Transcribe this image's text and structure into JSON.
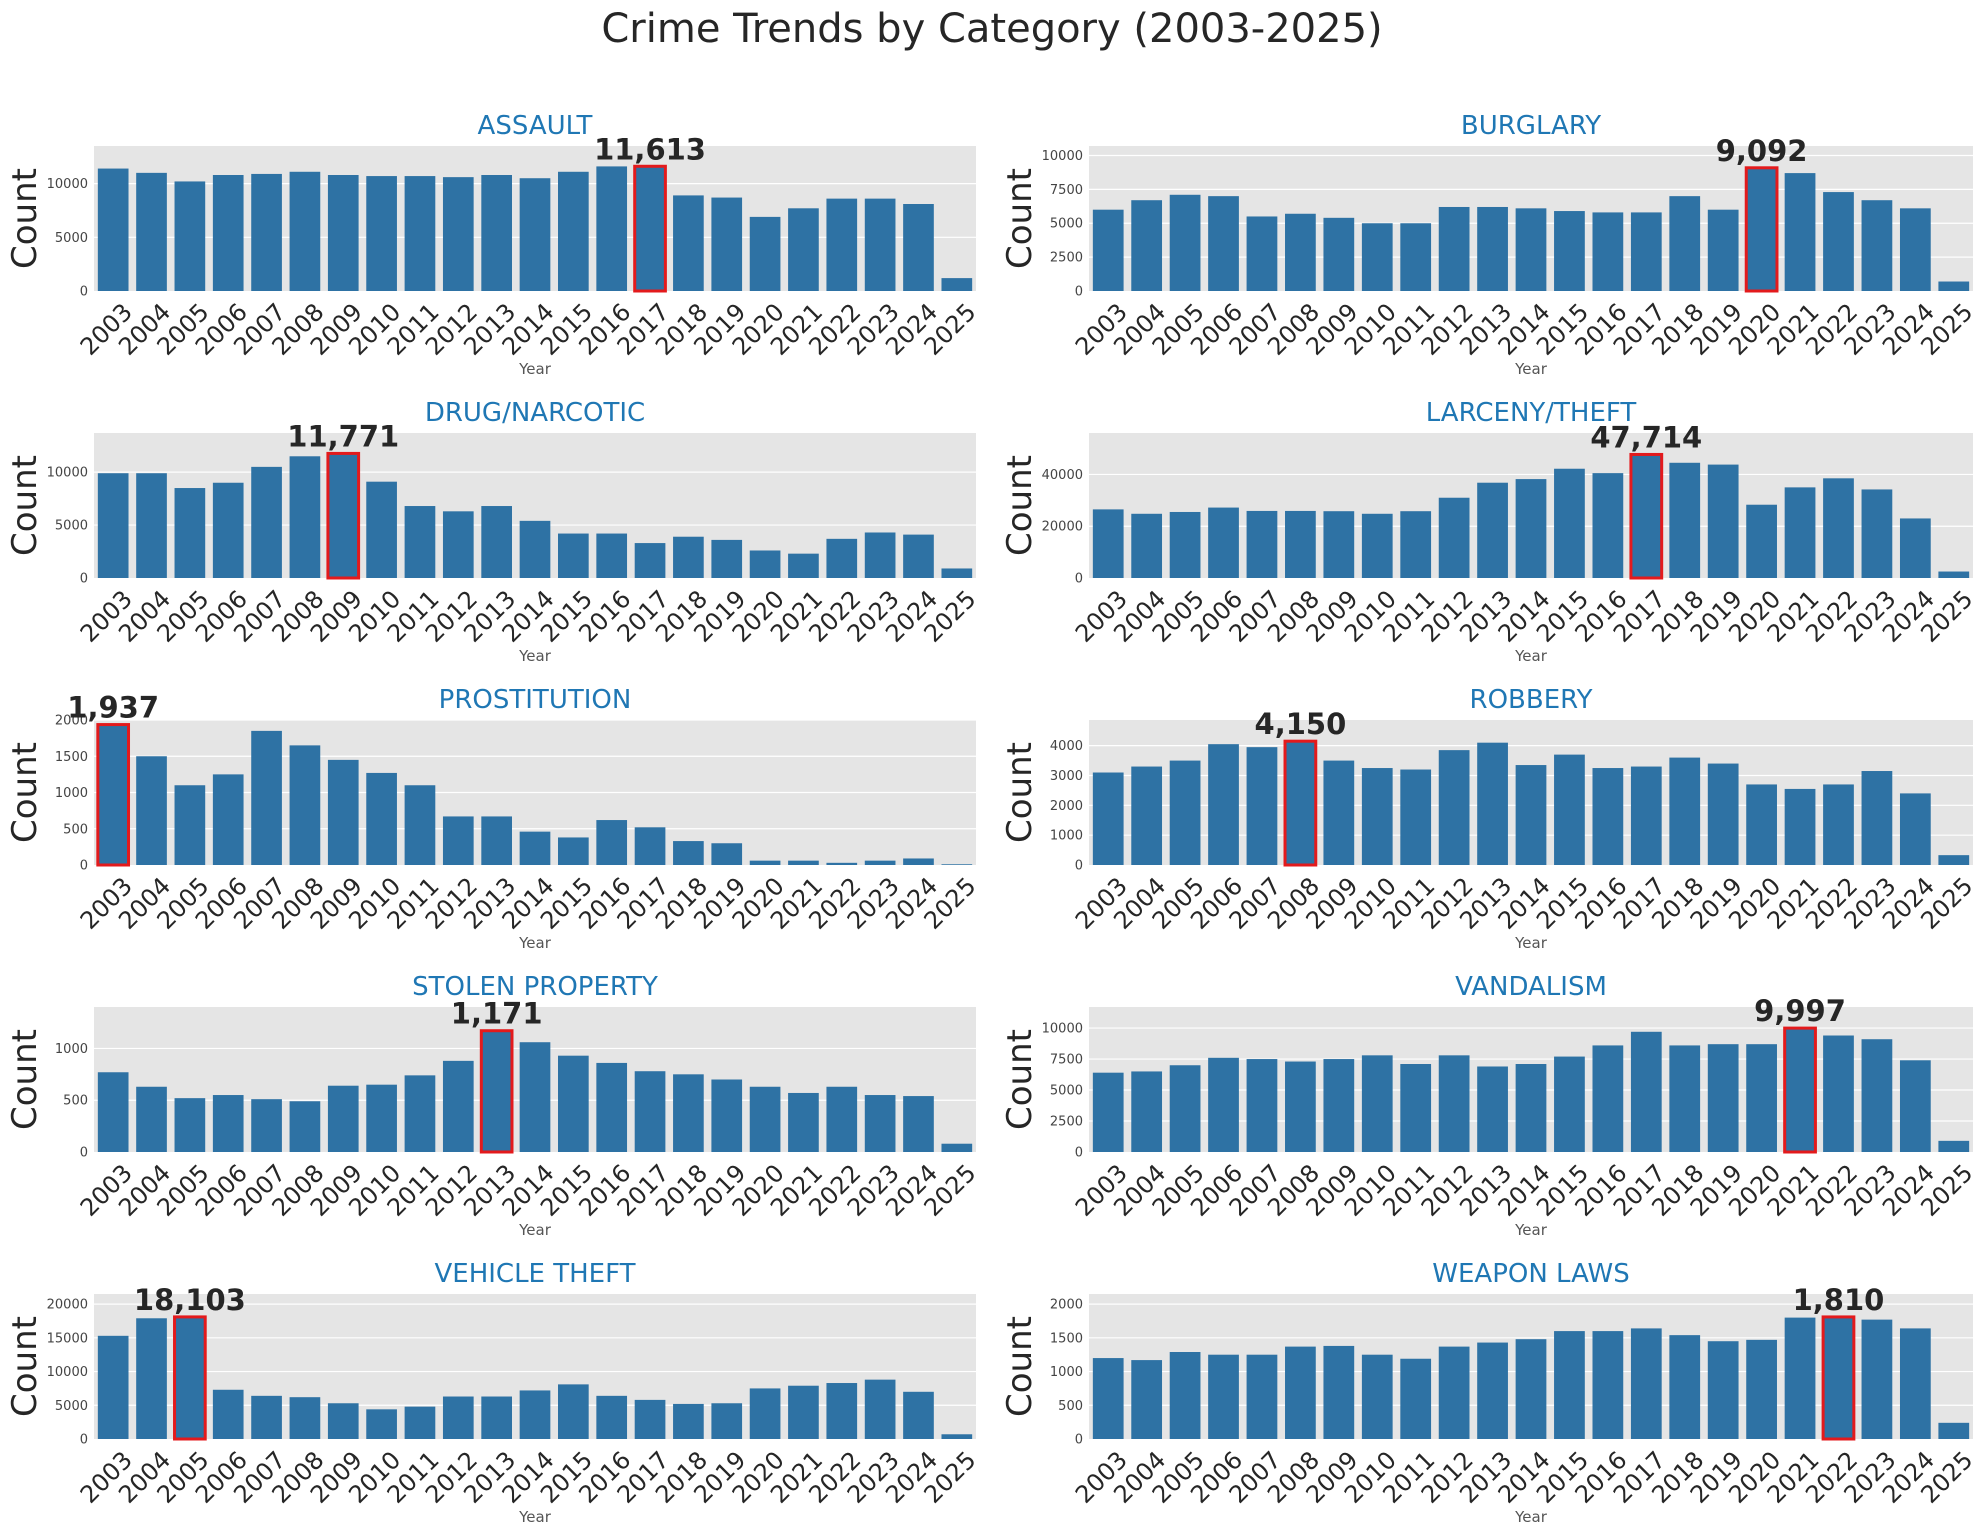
{
  "title": "Crime Trends by Category (2003-2025)",
  "colors": {
    "bar": "#2e72a4",
    "highlight": "#e31a1c",
    "panel": "#e5e5e5",
    "title": "#1f77b4"
  },
  "chart_data": [
    {
      "type": "bar",
      "title": "ASSAULT",
      "xlabel": "Year",
      "ylabel": "Count",
      "categories": [
        "2003",
        "2004",
        "2005",
        "2006",
        "2007",
        "2008",
        "2009",
        "2010",
        "2011",
        "2012",
        "2013",
        "2014",
        "2015",
        "2016",
        "2017",
        "2018",
        "2019",
        "2020",
        "2021",
        "2022",
        "2023",
        "2024",
        "2025"
      ],
      "values": [
        11400,
        11000,
        10200,
        10800,
        10900,
        11100,
        10800,
        10700,
        10700,
        10600,
        10800,
        10500,
        11100,
        11600,
        11613,
        8900,
        8700,
        6900,
        7700,
        8600,
        8600,
        8100,
        1200
      ],
      "yticks": [
        0,
        5000,
        10000
      ],
      "ylim": [
        0,
        13500
      ],
      "highlight_index": 14,
      "highlight_label": "11,613"
    },
    {
      "type": "bar",
      "title": "BURGLARY",
      "xlabel": "Year",
      "ylabel": "Count",
      "categories": [
        "2003",
        "2004",
        "2005",
        "2006",
        "2007",
        "2008",
        "2009",
        "2010",
        "2011",
        "2012",
        "2013",
        "2014",
        "2015",
        "2016",
        "2017",
        "2018",
        "2019",
        "2020",
        "2021",
        "2022",
        "2023",
        "2024",
        "2025"
      ],
      "values": [
        6000,
        6700,
        7100,
        7000,
        5500,
        5700,
        5400,
        5000,
        5000,
        6200,
        6200,
        6100,
        5900,
        5800,
        5800,
        7000,
        6000,
        9092,
        8700,
        7300,
        6700,
        6100,
        700
      ],
      "yticks": [
        0,
        2500,
        5000,
        7500,
        10000
      ],
      "ylim": [
        0,
        10700
      ],
      "highlight_index": 17,
      "highlight_label": "9,092"
    },
    {
      "type": "bar",
      "title": "DRUG/NARCOTIC",
      "xlabel": "Year",
      "ylabel": "Count",
      "categories": [
        "2003",
        "2004",
        "2005",
        "2006",
        "2007",
        "2008",
        "2009",
        "2010",
        "2011",
        "2012",
        "2013",
        "2014",
        "2015",
        "2016",
        "2017",
        "2018",
        "2019",
        "2020",
        "2021",
        "2022",
        "2023",
        "2024",
        "2025"
      ],
      "values": [
        9900,
        9900,
        8500,
        9000,
        10500,
        11500,
        11771,
        9100,
        6800,
        6300,
        6800,
        5400,
        4200,
        4200,
        3300,
        3900,
        3600,
        2600,
        2300,
        3700,
        4300,
        4100,
        900
      ],
      "yticks": [
        0,
        5000,
        10000
      ],
      "ylim": [
        0,
        13700
      ],
      "highlight_index": 6,
      "highlight_label": "11,771"
    },
    {
      "type": "bar",
      "title": "LARCENY/THEFT",
      "xlabel": "Year",
      "ylabel": "Count",
      "categories": [
        "2003",
        "2004",
        "2005",
        "2006",
        "2007",
        "2008",
        "2009",
        "2010",
        "2011",
        "2012",
        "2013",
        "2014",
        "2015",
        "2016",
        "2017",
        "2018",
        "2019",
        "2020",
        "2021",
        "2022",
        "2023",
        "2024",
        "2025"
      ],
      "values": [
        26500,
        24800,
        25500,
        27200,
        25900,
        25900,
        25800,
        24800,
        25800,
        31000,
        36800,
        38200,
        42200,
        40500,
        47714,
        44500,
        43800,
        28300,
        35000,
        38500,
        34200,
        23000,
        2500
      ],
      "yticks": [
        0,
        20000,
        40000
      ],
      "ylim": [
        0,
        56000
      ],
      "highlight_index": 14,
      "highlight_label": "47,714"
    },
    {
      "type": "bar",
      "title": "PROSTITUTION",
      "xlabel": "Year",
      "ylabel": "Count",
      "categories": [
        "2003",
        "2004",
        "2005",
        "2006",
        "2007",
        "2008",
        "2009",
        "2010",
        "2011",
        "2012",
        "2013",
        "2014",
        "2015",
        "2016",
        "2017",
        "2018",
        "2019",
        "2020",
        "2021",
        "2022",
        "2023",
        "2024",
        "2025"
      ],
      "values": [
        1937,
        1500,
        1100,
        1250,
        1850,
        1650,
        1450,
        1270,
        1100,
        670,
        670,
        460,
        380,
        620,
        520,
        330,
        300,
        60,
        60,
        30,
        60,
        90,
        10
      ],
      "yticks": [
        0,
        500,
        1000,
        1500,
        2000
      ],
      "ylim": [
        0,
        2000
      ],
      "highlight_index": 0,
      "highlight_label": "1,937"
    },
    {
      "type": "bar",
      "title": "ROBBERY",
      "xlabel": "Year",
      "ylabel": "Count",
      "categories": [
        "2003",
        "2004",
        "2005",
        "2006",
        "2007",
        "2008",
        "2009",
        "2010",
        "2011",
        "2012",
        "2013",
        "2014",
        "2015",
        "2016",
        "2017",
        "2018",
        "2019",
        "2020",
        "2021",
        "2022",
        "2023",
        "2024",
        "2025"
      ],
      "values": [
        3100,
        3300,
        3500,
        4050,
        3950,
        4150,
        3500,
        3250,
        3200,
        3850,
        4100,
        3350,
        3700,
        3250,
        3300,
        3600,
        3400,
        2700,
        2550,
        2700,
        3150,
        2400,
        330
      ],
      "yticks": [
        0,
        1000,
        2000,
        3000,
        4000
      ],
      "ylim": [
        0,
        4860
      ],
      "highlight_index": 5,
      "highlight_label": "4,150"
    },
    {
      "type": "bar",
      "title": "STOLEN PROPERTY",
      "xlabel": "Year",
      "ylabel": "Count",
      "categories": [
        "2003",
        "2004",
        "2005",
        "2006",
        "2007",
        "2008",
        "2009",
        "2010",
        "2011",
        "2012",
        "2013",
        "2014",
        "2015",
        "2016",
        "2017",
        "2018",
        "2019",
        "2020",
        "2021",
        "2022",
        "2023",
        "2024",
        "2025"
      ],
      "values": [
        770,
        630,
        520,
        550,
        510,
        490,
        640,
        650,
        740,
        880,
        1171,
        1060,
        930,
        860,
        780,
        750,
        700,
        630,
        570,
        630,
        550,
        540,
        80
      ],
      "yticks": [
        0,
        500,
        1000
      ],
      "ylim": [
        0,
        1400
      ],
      "highlight_index": 10,
      "highlight_label": "1,171"
    },
    {
      "type": "bar",
      "title": "VANDALISM",
      "xlabel": "Year",
      "ylabel": "Count",
      "categories": [
        "2003",
        "2004",
        "2005",
        "2006",
        "2007",
        "2008",
        "2009",
        "2010",
        "2011",
        "2012",
        "2013",
        "2014",
        "2015",
        "2016",
        "2017",
        "2018",
        "2019",
        "2020",
        "2021",
        "2022",
        "2023",
        "2024",
        "2025"
      ],
      "values": [
        6400,
        6500,
        7000,
        7600,
        7500,
        7300,
        7500,
        7800,
        7100,
        7800,
        6900,
        7100,
        7700,
        8600,
        9700,
        8600,
        8700,
        8700,
        9997,
        9400,
        9100,
        7400,
        900
      ],
      "yticks": [
        0,
        2500,
        5000,
        7500,
        10000
      ],
      "ylim": [
        0,
        11700
      ],
      "highlight_index": 18,
      "highlight_label": "9,997"
    },
    {
      "type": "bar",
      "title": "VEHICLE THEFT",
      "xlabel": "Year",
      "ylabel": "Count",
      "categories": [
        "2003",
        "2004",
        "2005",
        "2006",
        "2007",
        "2008",
        "2009",
        "2010",
        "2011",
        "2012",
        "2013",
        "2014",
        "2015",
        "2016",
        "2017",
        "2018",
        "2019",
        "2020",
        "2021",
        "2022",
        "2023",
        "2024",
        "2025"
      ],
      "values": [
        15300,
        17900,
        18103,
        7300,
        6400,
        6200,
        5300,
        4400,
        4800,
        6300,
        6300,
        7200,
        8100,
        6400,
        5800,
        5200,
        5300,
        7500,
        7900,
        8300,
        8800,
        7000,
        700
      ],
      "yticks": [
        0,
        5000,
        10000,
        15000,
        20000
      ],
      "ylim": [
        0,
        21500
      ],
      "highlight_index": 2,
      "highlight_label": "18,103"
    },
    {
      "type": "bar",
      "title": "WEAPON LAWS",
      "xlabel": "Year",
      "ylabel": "Count",
      "categories": [
        "2003",
        "2004",
        "2005",
        "2006",
        "2007",
        "2008",
        "2009",
        "2010",
        "2011",
        "2012",
        "2013",
        "2014",
        "2015",
        "2016",
        "2017",
        "2018",
        "2019",
        "2020",
        "2021",
        "2022",
        "2023",
        "2024",
        "2025"
      ],
      "values": [
        1200,
        1170,
        1290,
        1250,
        1250,
        1370,
        1380,
        1250,
        1190,
        1370,
        1430,
        1480,
        1600,
        1600,
        1640,
        1540,
        1450,
        1470,
        1800,
        1810,
        1770,
        1640,
        240
      ],
      "yticks": [
        0,
        500,
        1000,
        1500,
        2000
      ],
      "ylim": [
        0,
        2150
      ],
      "highlight_index": 19,
      "highlight_label": "1,810"
    }
  ]
}
